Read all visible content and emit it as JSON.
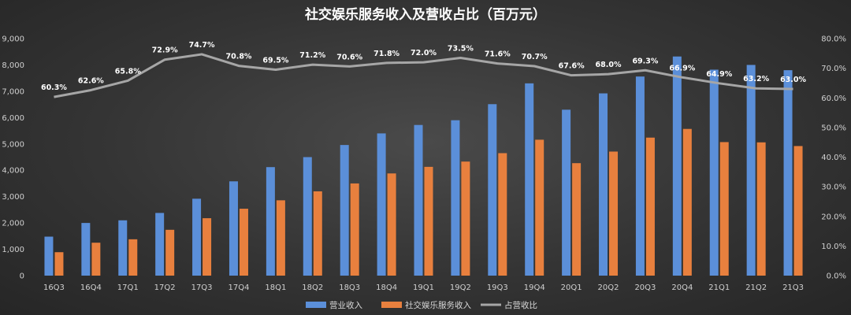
{
  "chart_data": {
    "type": "bar",
    "title": "社交娱乐服务收入及营收占比（百万元）",
    "categories": [
      "16Q3",
      "16Q4",
      "17Q1",
      "17Q2",
      "17Q3",
      "17Q4",
      "18Q1",
      "18Q2",
      "18Q3",
      "18Q4",
      "19Q1",
      "19Q2",
      "19Q3",
      "19Q4",
      "20Q1",
      "20Q2",
      "20Q3",
      "20Q4",
      "21Q1",
      "21Q2",
      "21Q3"
    ],
    "series": [
      {
        "name": "营业收入",
        "type": "bar",
        "color": "#5b8fd9",
        "values": [
          1480,
          2000,
          2100,
          2380,
          2920,
          3580,
          4120,
          4500,
          4960,
          5400,
          5720,
          5900,
          6510,
          7300,
          6300,
          6920,
          7560,
          8320,
          7820,
          8000,
          7800
        ]
      },
      {
        "name": "社交娱乐服务收入",
        "type": "bar",
        "color": "#e8803e",
        "values": [
          890,
          1250,
          1380,
          1740,
          2180,
          2540,
          2860,
          3200,
          3500,
          3880,
          4130,
          4330,
          4650,
          5160,
          4270,
          4710,
          5240,
          5570,
          5070,
          5060,
          4920
        ]
      },
      {
        "name": "占营收比",
        "type": "line",
        "axis": "right",
        "color": "#a6a6a6",
        "values": [
          60.3,
          62.6,
          65.8,
          72.9,
          74.7,
          70.8,
          69.5,
          71.2,
          70.6,
          71.8,
          72.0,
          73.5,
          71.6,
          70.7,
          67.6,
          68.0,
          69.3,
          66.9,
          64.9,
          63.2,
          63.0
        ],
        "labels": [
          "60.3%",
          "62.6%",
          "65.8%",
          "72.9%",
          "74.7%",
          "70.8%",
          "69.5%",
          "71.2%",
          "70.6%",
          "71.8%",
          "72.0%",
          "73.5%",
          "71.6%",
          "70.7%",
          "67.6%",
          "68.0%",
          "69.3%",
          "66.9%",
          "64.9%",
          "63.2%",
          "63.0%"
        ]
      }
    ],
    "ylim": [
      0,
      9000
    ],
    "yticks": [
      "0",
      "1,000",
      "2,000",
      "3,000",
      "4,000",
      "5,000",
      "6,000",
      "7,000",
      "8,000",
      "9,000"
    ],
    "y2lim": [
      0,
      80
    ],
    "y2ticks": [
      "0.0%",
      "10.0%",
      "20.0%",
      "30.0%",
      "40.0%",
      "50.0%",
      "60.0%",
      "70.0%",
      "80.0%"
    ],
    "grid": false,
    "legend_position": "bottom"
  }
}
